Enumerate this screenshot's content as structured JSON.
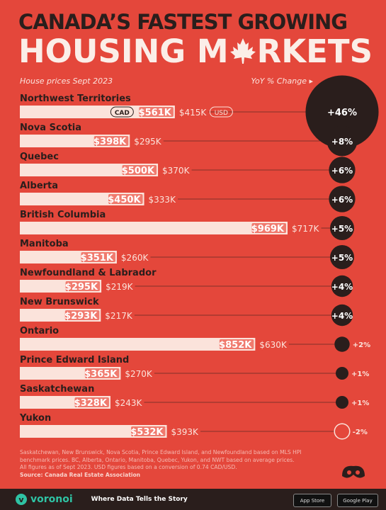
{
  "header": {
    "title_line1": "CANADA’S FASTEST GROWING",
    "title_line2_part1": "HOUSING M",
    "title_line2_part2": "RKETS",
    "subtitle_left": "House prices Sept 2023",
    "subtitle_right": "YoY % Change ▸"
  },
  "chart_data": {
    "type": "bar",
    "categories": [
      "Northwest Territories",
      "Nova Scotia",
      "Quebec",
      "Alberta",
      "British Columbia",
      "Manitoba",
      "Newfoundland & Labrador",
      "New Brunswick",
      "Ontario",
      "Prince Edward Island",
      "Saskatchewan",
      "Yukon"
    ],
    "cad_labels": [
      "$561K",
      "$398K",
      "$500K",
      "$450K",
      "$969K",
      "$351K",
      "$295K",
      "$293K",
      "$852K",
      "$365K",
      "$328K",
      "$532K"
    ],
    "usd_labels": [
      "$415K",
      "$295K",
      "$370K",
      "$333K",
      "$717K",
      "$260K",
      "$219K",
      "$217K",
      "$630K",
      "$270K",
      "$243K",
      "$393K"
    ],
    "series": [
      {
        "name": "CAD",
        "values": [
          561,
          398,
          500,
          450,
          969,
          351,
          295,
          293,
          852,
          365,
          328,
          532
        ]
      },
      {
        "name": "USD",
        "values": [
          415,
          295,
          370,
          333,
          717,
          260,
          219,
          217,
          630,
          270,
          243,
          393
        ]
      }
    ],
    "yoy_change": [
      46,
      8,
      6,
      6,
      5,
      5,
      4,
      4,
      2,
      1,
      1,
      -2
    ],
    "yoy_labels": [
      "+46%",
      "+8%",
      "+6%",
      "+6%",
      "+5%",
      "+5%",
      "+4%",
      "+4%",
      "+2%",
      "+1%",
      "+1%",
      "-2%"
    ],
    "legend_cad": "CAD",
    "legend_usd": "USD"
  },
  "footnote": {
    "line1": "Saskatchewan, New Brunswick, Nova Scotia, Prince Edward Island, and Newfoundland based on MLS HPI benchmark prices. BC, Alberta, Ontario, Manitoba, Quebec, Yukon, and NWT based on average prices.",
    "line2": "All figures as of Sept 2023. USD figures based on a conversion of 0.74 CAD/USD.",
    "source": "Source: Canada Real Estate Association"
  },
  "footer": {
    "brand": "voronoi",
    "tagline": "Where Data Tells the Story",
    "app_store": "App Store",
    "google_play": "Google Play"
  },
  "colors": {
    "background": "#e4473b",
    "bar_cad": "#fbe3db",
    "bar_usd": "#f07a6e",
    "circle": "#2a1e1c",
    "title_dark": "#2a1e1c",
    "title_light": "#fbeee8"
  }
}
